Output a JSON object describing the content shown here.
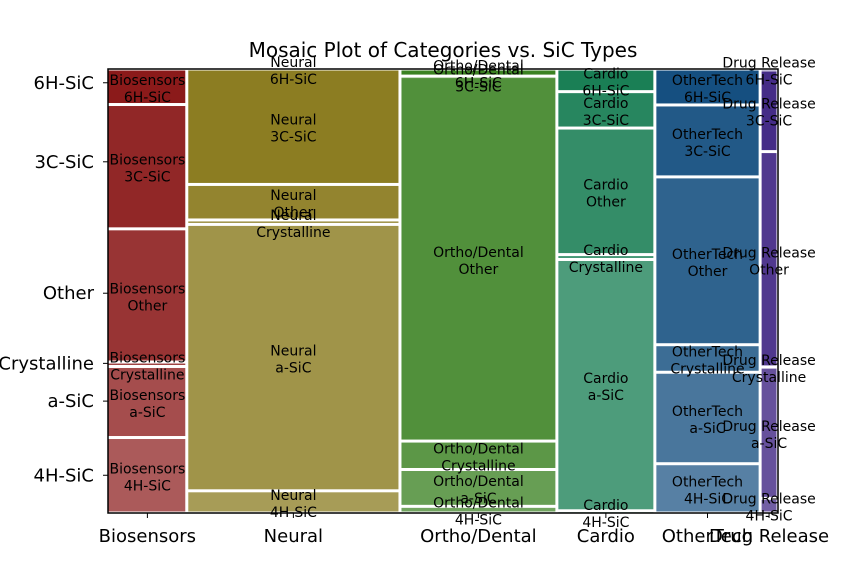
{
  "chart_data": {
    "type": "mosaic",
    "title": "Mosaic Plot of Categories vs. SiC Types",
    "xlabel": "",
    "ylabel": "",
    "grid": false,
    "categories": [
      "Biosensors",
      "Neural",
      "Ortho/Dental",
      "Cardio",
      "OtherTech",
      "Drug Release"
    ],
    "category_widths": [
      0.119,
      0.322,
      0.237,
      0.148,
      0.159,
      0.027
    ],
    "sic_types": [
      "4H-SiC",
      "a-SiC",
      "Crystalline",
      "Other",
      "3C-SiC",
      "6H-SiC"
    ],
    "y_tick_labels": [
      "4H-SiC",
      "a-SiC",
      "Crystalline",
      "Other",
      "3C-SiC",
      "6H-SiC"
    ],
    "y_tick_positions": [
      0.085,
      0.252,
      0.337,
      0.495,
      0.791,
      0.969
    ],
    "colors": {
      "Biosensors": "#8b1a1a",
      "Neural": "#857515",
      "Ortho/Dental": "#3b8222",
      "Cardio": "#1a7f55",
      "OtherTech": "#154f80",
      "Drug Release": "#3a1f80"
    },
    "proportions": {
      "Biosensors": [
        0.17,
        0.16,
        0.01,
        0.3,
        0.28,
        0.08
      ],
      "Neural": [
        0.05,
        0.6,
        0.01,
        0.08,
        0.26,
        0.0
      ],
      "Ortho/Dental": [
        0.015,
        0.083,
        0.064,
        0.821,
        0.001,
        0.016
      ],
      "Cardio": [
        0.005,
        0.566,
        0.011,
        0.285,
        0.082,
        0.051
      ],
      "OtherTech": [
        0.111,
        0.206,
        0.062,
        0.378,
        0.162,
        0.081
      ],
      "Drug Release": [
        0.033,
        0.295,
        0.001,
        0.485,
        0.184,
        0.002
      ]
    }
  }
}
